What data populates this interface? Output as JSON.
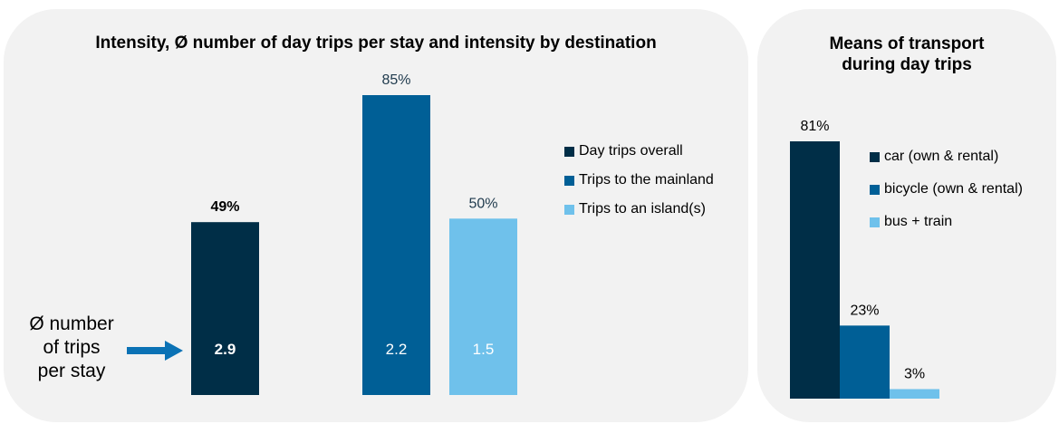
{
  "colors": {
    "panel_bg": "#f2f2f2",
    "dark_navy": "#002e47",
    "mid_blue": "#005f96",
    "light_blue": "#6fc1eb",
    "arrow_blue": "#0b72b5"
  },
  "chart_data": [
    {
      "type": "bar",
      "title": "Intensity, Ø number of day trips per stay and intensity by destination",
      "categories": [
        "Day trips overall",
        "Trips to the mainland",
        "Trips to an island(s)"
      ],
      "series": [
        {
          "name": "Intensity",
          "values": [
            49,
            85,
            50
          ],
          "labels": [
            "49%",
            "85%",
            "50%"
          ]
        },
        {
          "name": "Ø number of trips per stay",
          "values": [
            2.9,
            2.2,
            1.5
          ],
          "labels": [
            "2.9",
            "2.2",
            "1.5"
          ]
        }
      ],
      "legend": [
        "Day trips overall",
        "Trips to the mainland",
        "Trips to an island(s)"
      ],
      "legend_position": "right",
      "annotation": "Ø number of trips per stay",
      "ylim": [
        0,
        100
      ],
      "grid": false
    },
    {
      "type": "bar",
      "title": "Means of transport during day trips",
      "categories": [
        "car (own & rental)",
        "bicycle (own & rental)",
        "bus + train"
      ],
      "values": [
        81,
        23,
        3
      ],
      "labels": [
        "81%",
        "23%",
        "3%"
      ],
      "legend": [
        "car (own & rental)",
        "bicycle (own & rental)",
        "bus + train"
      ],
      "legend_position": "right",
      "ylim": [
        0,
        100
      ],
      "grid": false
    }
  ],
  "left_title": "Intensity, Ø number of day trips per stay and intensity by destination",
  "right_title_line1": "Means of transport",
  "right_title_line2": "during day trips",
  "annotation_line1": "Ø number",
  "annotation_line2": "of trips",
  "annotation_line3": "per stay",
  "legend_left": [
    "Day trips overall",
    "Trips to the mainland",
    "Trips to an island(s)"
  ],
  "legend_right": [
    "car (own & rental)",
    "bicycle (own & rental)",
    "bus + train"
  ]
}
